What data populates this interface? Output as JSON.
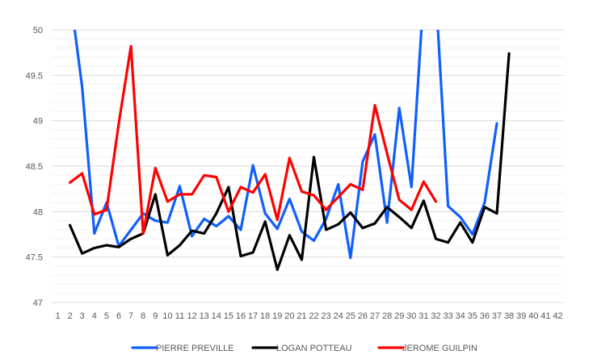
{
  "chart_data": {
    "type": "line",
    "title": "",
    "xlabel": "",
    "ylabel": "",
    "x": [
      1,
      2,
      3,
      4,
      5,
      6,
      7,
      8,
      9,
      10,
      11,
      12,
      13,
      14,
      15,
      16,
      17,
      18,
      19,
      20,
      21,
      22,
      23,
      24,
      25,
      26,
      27,
      28,
      29,
      30,
      31,
      32,
      33,
      34,
      35,
      36,
      37,
      38,
      39,
      40,
      41,
      42
    ],
    "ylim": [
      47,
      50
    ],
    "yticks": [
      "47",
      "47.5",
      "48",
      "48.5",
      "49",
      "49.5",
      "50"
    ],
    "grid": true,
    "legend_position": "bottom",
    "series": [
      {
        "name": "PIERRE PREVILLE",
        "color": "#0f5fff",
        "values": [
          null,
          50.4,
          49.37,
          47.76,
          48.1,
          47.62,
          47.8,
          47.98,
          47.9,
          47.88,
          48.28,
          47.73,
          47.92,
          47.84,
          47.95,
          47.8,
          48.51,
          47.98,
          47.81,
          48.14,
          47.78,
          47.68,
          47.92,
          48.3,
          47.49,
          48.55,
          48.85,
          47.88,
          49.14,
          48.27,
          50.4,
          50.4,
          48.06,
          47.94,
          47.75,
          48.1,
          48.97,
          null,
          null,
          null,
          null,
          null
        ]
      },
      {
        "name": "LOGAN POTTEAU",
        "color": "#000000",
        "values": [
          null,
          47.85,
          47.54,
          47.6,
          47.63,
          47.61,
          47.7,
          47.76,
          48.19,
          47.52,
          47.63,
          47.79,
          47.76,
          47.98,
          48.27,
          47.51,
          47.55,
          47.89,
          47.36,
          47.74,
          47.47,
          48.6,
          47.8,
          47.86,
          47.99,
          47.82,
          47.87,
          48.05,
          47.94,
          47.82,
          48.12,
          47.7,
          47.66,
          47.88,
          47.66,
          48.05,
          47.98,
          49.74,
          null,
          null,
          null,
          null
        ]
      },
      {
        "name": "JEROME GUILPIN",
        "color": "#ff0000",
        "values": [
          null,
          48.32,
          48.42,
          47.97,
          48.02,
          48.97,
          49.82,
          47.76,
          48.48,
          48.11,
          48.19,
          48.19,
          48.4,
          48.38,
          48.0,
          48.27,
          48.21,
          48.41,
          47.91,
          48.59,
          48.22,
          48.18,
          48.02,
          48.16,
          48.3,
          48.24,
          49.17,
          48.64,
          48.13,
          48.02,
          48.33,
          48.11,
          null,
          null,
          null,
          null,
          null,
          null,
          null,
          null,
          null,
          null
        ]
      }
    ]
  }
}
